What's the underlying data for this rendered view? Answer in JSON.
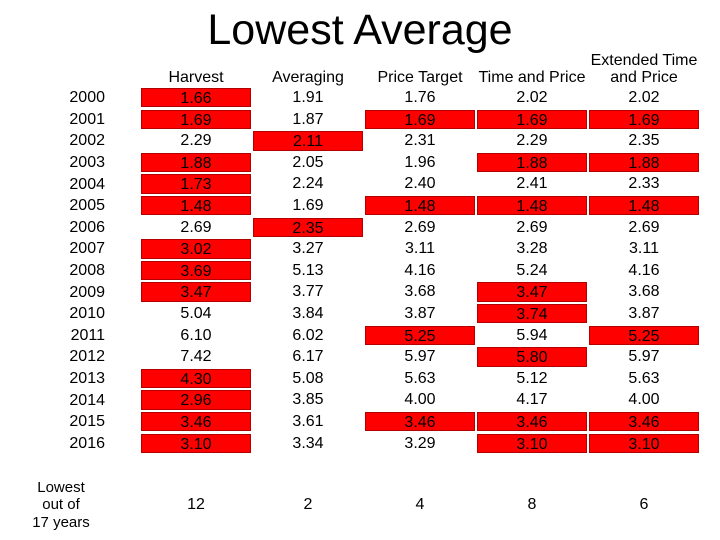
{
  "slide": {
    "title": "Lowest Average",
    "background": "#ffffff"
  },
  "table": {
    "columns": [
      {
        "id": "harvest",
        "label": "Harvest",
        "label_lines": [
          "Harvest"
        ]
      },
      {
        "id": "averaging",
        "label": "Averaging",
        "label_lines": [
          "Averaging"
        ]
      },
      {
        "id": "price-target",
        "label": "Price Target",
        "label_lines": [
          "Price Target"
        ]
      },
      {
        "id": "time-and-price",
        "label": "Time and Price",
        "label_lines": [
          "Time and Price"
        ]
      },
      {
        "id": "extended-time-and-price",
        "label": "Extended Time and Price",
        "label_lines": [
          "Extended Time",
          "and Price"
        ]
      }
    ],
    "rows": [
      {
        "year": "2000",
        "values": [
          "1.66",
          "1.91",
          "1.76",
          "2.02",
          "2.02"
        ],
        "highlighted": [
          true,
          false,
          false,
          false,
          false
        ]
      },
      {
        "year": "2001",
        "values": [
          "1.69",
          "1.87",
          "1.69",
          "1.69",
          "1.69"
        ],
        "highlighted": [
          true,
          false,
          true,
          true,
          true
        ]
      },
      {
        "year": "2002",
        "values": [
          "2.29",
          "2.11",
          "2.31",
          "2.29",
          "2.35"
        ],
        "highlighted": [
          false,
          true,
          false,
          false,
          false
        ]
      },
      {
        "year": "2003",
        "values": [
          "1.88",
          "2.05",
          "1.96",
          "1.88",
          "1.88"
        ],
        "highlighted": [
          true,
          false,
          false,
          true,
          true
        ]
      },
      {
        "year": "2004",
        "values": [
          "1.73",
          "2.24",
          "2.40",
          "2.41",
          "2.33"
        ],
        "highlighted": [
          true,
          false,
          false,
          false,
          false
        ]
      },
      {
        "year": "2005",
        "values": [
          "1.48",
          "1.69",
          "1.48",
          "1.48",
          "1.48"
        ],
        "highlighted": [
          true,
          false,
          true,
          true,
          true
        ]
      },
      {
        "year": "2006",
        "values": [
          "2.69",
          "2.35",
          "2.69",
          "2.69",
          "2.69"
        ],
        "highlighted": [
          false,
          true,
          false,
          false,
          false
        ]
      },
      {
        "year": "2007",
        "values": [
          "3.02",
          "3.27",
          "3.11",
          "3.28",
          "3.11"
        ],
        "highlighted": [
          true,
          false,
          false,
          false,
          false
        ]
      },
      {
        "year": "2008",
        "values": [
          "3.69",
          "5.13",
          "4.16",
          "5.24",
          "4.16"
        ],
        "highlighted": [
          true,
          false,
          false,
          false,
          false
        ]
      },
      {
        "year": "2009",
        "values": [
          "3.47",
          "3.77",
          "3.68",
          "3.47",
          "3.68"
        ],
        "highlighted": [
          true,
          false,
          false,
          true,
          false
        ]
      },
      {
        "year": "2010",
        "values": [
          "5.04",
          "3.84",
          "3.87",
          "3.74",
          "3.87"
        ],
        "highlighted": [
          false,
          false,
          false,
          true,
          false
        ]
      },
      {
        "year": "2011",
        "values": [
          "6.10",
          "6.02",
          "5.25",
          "5.94",
          "5.25"
        ],
        "highlighted": [
          false,
          false,
          true,
          false,
          true
        ]
      },
      {
        "year": "2012",
        "values": [
          "7.42",
          "6.17",
          "5.97",
          "5.80",
          "5.97"
        ],
        "highlighted": [
          false,
          false,
          false,
          true,
          false
        ]
      },
      {
        "year": "2013",
        "values": [
          "4.30",
          "5.08",
          "5.63",
          "5.12",
          "5.63"
        ],
        "highlighted": [
          true,
          false,
          false,
          false,
          false
        ]
      },
      {
        "year": "2014",
        "values": [
          "2.96",
          "3.85",
          "4.00",
          "4.17",
          "4.00"
        ],
        "highlighted": [
          true,
          false,
          false,
          false,
          false
        ]
      },
      {
        "year": "2015",
        "values": [
          "3.46",
          "3.61",
          "3.46",
          "3.46",
          "3.46"
        ],
        "highlighted": [
          true,
          false,
          true,
          true,
          true
        ]
      },
      {
        "year": "2016",
        "values": [
          "3.10",
          "3.34",
          "3.29",
          "3.10",
          "3.10"
        ],
        "highlighted": [
          true,
          false,
          false,
          true,
          true
        ]
      }
    ],
    "summary": {
      "label_lines": [
        "Lowest",
        "out of",
        "17 years"
      ],
      "counts": [
        "12",
        "2",
        "4",
        "8",
        "6"
      ]
    }
  },
  "colors": {
    "highlight_fill": "#ff0000",
    "highlight_border": "#b30000",
    "text": "#000000"
  }
}
